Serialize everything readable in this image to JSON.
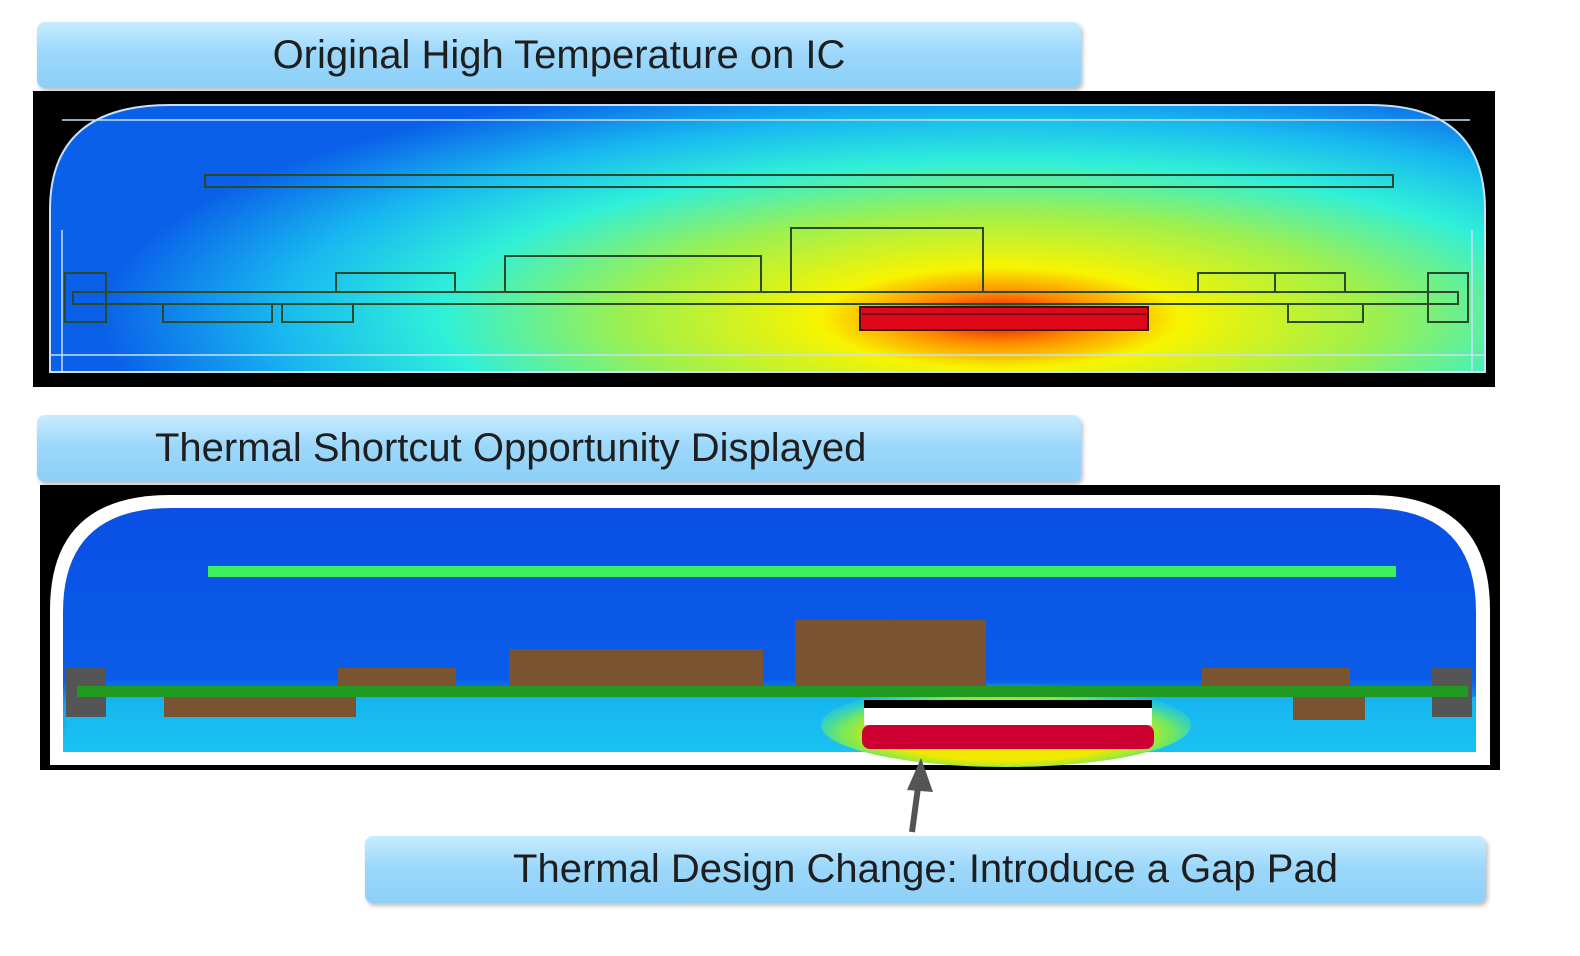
{
  "labels": {
    "top": "Original High Temperature on IC",
    "middle": "Thermal Shortcut Opportunity Displayed",
    "bottom": "Thermal Design Change: Introduce a Gap Pad"
  },
  "colors": {
    "hot": "#d40020",
    "warm": "#f5f000",
    "cool": "#1fe8f0",
    "cold": "#0a4fe6",
    "pcb": "#1f9a1f",
    "component": "#7a5330",
    "shield": "#3cf060",
    "label_fill": "#9dd8fb"
  }
}
